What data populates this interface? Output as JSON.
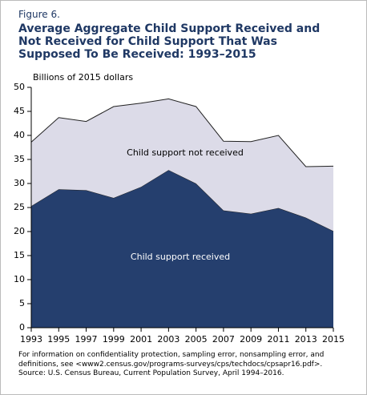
{
  "chart_data": {
    "type": "stacked_area",
    "figure_label": "Figure 6.",
    "title": "Average Aggregate Child Support Received and Not Received for Child Support That Was Supposed To Be Received: 1993–2015",
    "y_label": "Billions of 2015 dollars",
    "x": [
      1993,
      1995,
      1997,
      1999,
      2001,
      2003,
      2005,
      2007,
      2009,
      2011,
      2013,
      2015
    ],
    "xlim": [
      1993,
      2015
    ],
    "xticks": [
      1993,
      1995,
      1997,
      1999,
      2001,
      2003,
      2005,
      2007,
      2009,
      2011,
      2013,
      2015
    ],
    "ylim": [
      0,
      50
    ],
    "yticks": [
      0,
      5,
      10,
      15,
      20,
      25,
      30,
      35,
      40,
      45,
      50
    ],
    "series": [
      {
        "name": "Child support received",
        "color": "#253f6e",
        "values": [
          25.3,
          28.8,
          28.6,
          27.0,
          29.3,
          32.8,
          30.0,
          24.4,
          23.7,
          24.9,
          22.9,
          20.1
        ]
      },
      {
        "name": "Child support not received",
        "color": "#dcdbe8",
        "values": [
          13.3,
          14.9,
          14.3,
          19.0,
          17.4,
          14.8,
          16.0,
          14.4,
          15.0,
          15.1,
          10.6,
          13.5
        ]
      }
    ],
    "note": "For information on confidentiality protection, sampling error, nonsampling error, and definitions, see <www2.census.gov/programs-surveys/cps/techdocs/cpsapr16.pdf>.",
    "source": "Source: U.S. Census Bureau, Current Population Survey, April 1994–2016."
  }
}
